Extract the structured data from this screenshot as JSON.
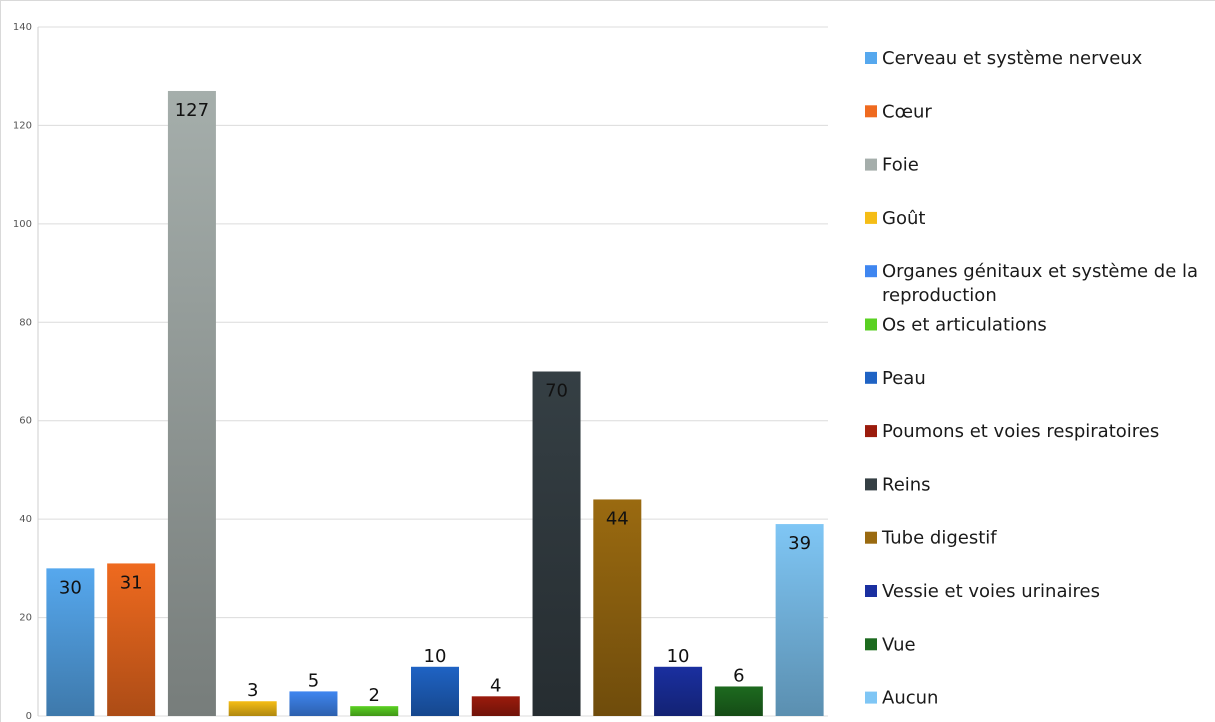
{
  "chart_data": {
    "type": "bar",
    "title": "",
    "xlabel": "",
    "ylabel": "",
    "ylim": [
      0,
      140
    ],
    "yticks": [
      0,
      20,
      40,
      60,
      80,
      100,
      120,
      140
    ],
    "grid": true,
    "legend_position": "right",
    "categories": [
      "Cerveau et système nerveux",
      "Cœur",
      "Foie",
      "Goût",
      "Organes génitaux et système de la reproduction",
      "Os et articulations",
      "Peau",
      "Poumons et voies respiratoires",
      "Reins",
      "Tube digestif",
      "Vessie et voies urinaires",
      "Vue",
      "Aucun"
    ],
    "values": [
      30,
      31,
      127,
      3,
      5,
      2,
      10,
      4,
      70,
      44,
      10,
      6,
      39
    ],
    "colors": [
      "#56a8ee",
      "#ef6a1f",
      "#a5aeab",
      "#f5bd16",
      "#3f86f0",
      "#5ad122",
      "#1f63c4",
      "#9b1b0c",
      "#353f44",
      "#9a6a10",
      "#1a2fa0",
      "#1d6a1f",
      "#7fc6f5"
    ],
    "legend": [
      "Cerveau et système nerveux",
      "Cœur",
      "Foie",
      "Goût",
      "Organes génitaux et système de la reproduction",
      "Os et articulations",
      "Peau",
      "Poumons et voies respiratoires",
      "Reins",
      "Tube digestif",
      "Vessie et voies urinaires",
      "Vue",
      "Aucun"
    ]
  }
}
